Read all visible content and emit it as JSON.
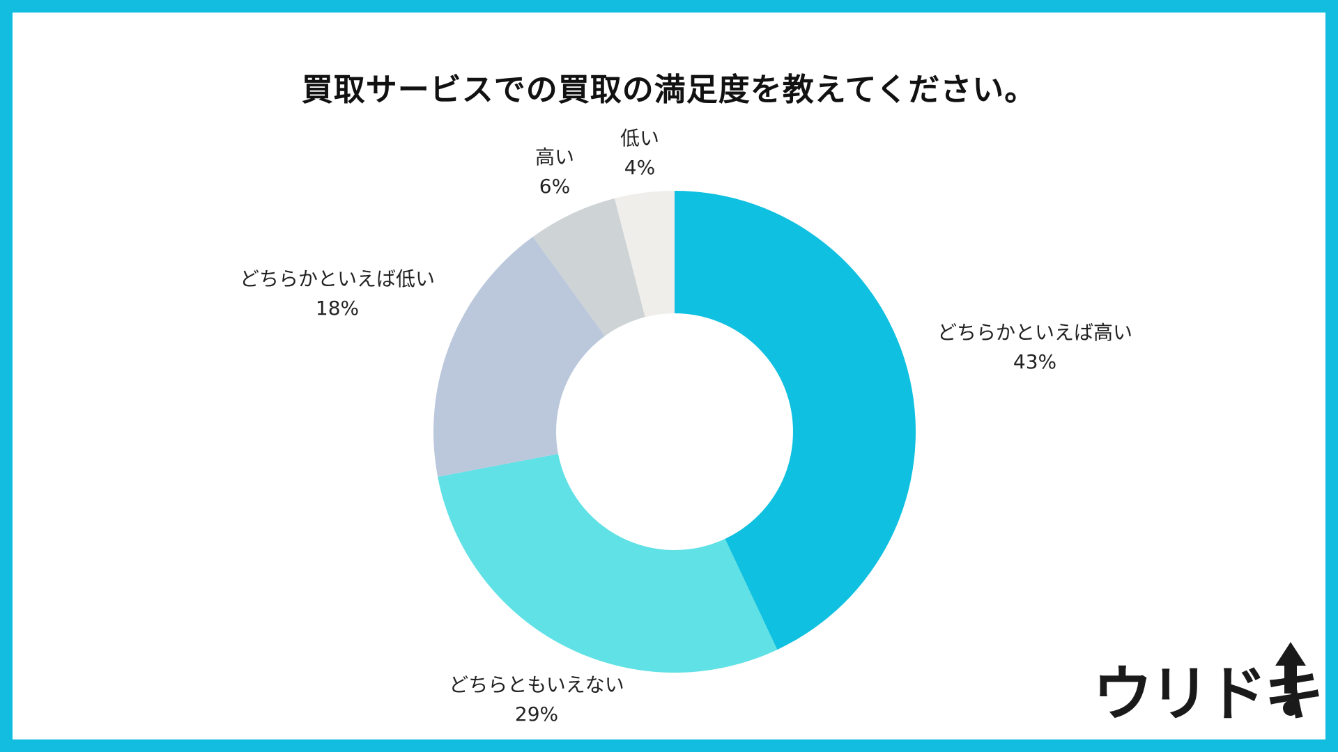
{
  "title": "買取サービスでの買取の満足度を教えてください。",
  "logo": {
    "text": "ウリドキ"
  },
  "colors": {
    "border": "#12BDE0",
    "background": "#FFFFFF"
  },
  "chart_data": {
    "type": "pie",
    "donut": true,
    "title": "買取サービスでの買取の満足度を教えてください。",
    "unit": "%",
    "slices": [
      {
        "label": "どちらかといえば高い",
        "value": 43,
        "percent_label": "43%",
        "color": "#0FC0E0"
      },
      {
        "label": "どちらともいえない",
        "value": 29,
        "percent_label": "29%",
        "color": "#5FE1E6"
      },
      {
        "label": "どちらかといえば低い",
        "value": 18,
        "percent_label": "18%",
        "color": "#BBC8DC"
      },
      {
        "label": "高い",
        "value": 6,
        "percent_label": "6%",
        "color": "#CED3D6"
      },
      {
        "label": "低い",
        "value": 4,
        "percent_label": "4%",
        "color": "#EFEEEB"
      }
    ]
  }
}
